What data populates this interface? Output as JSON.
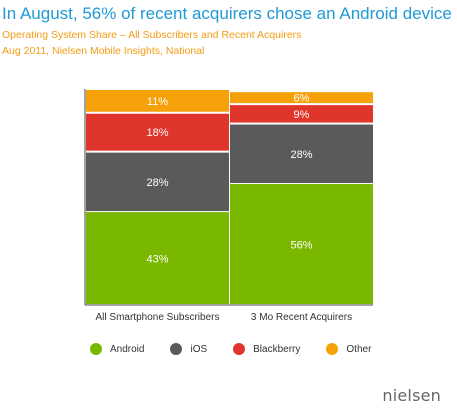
{
  "header": {
    "title": "In August, 56% of recent acquirers chose an Android device",
    "subtitle_line1": "Operating System Share – All Subscribers and Recent Acquirers",
    "subtitle_line2": "Aug 2011, Nielsen Mobile Insights, National"
  },
  "colors": {
    "Android": "#7ab800",
    "iOS": "#5a5a5a",
    "Blackberry": "#e0352b",
    "Other": "#f7a10a",
    "accent": "#1f9ad6"
  },
  "chart_data": {
    "type": "bar",
    "stacked": true,
    "normalized": true,
    "title": "In August, 56% of recent acquirers chose an Android device",
    "subtitle": "Operating System Share – All Subscribers and Recent Acquirers",
    "categories": [
      "All Smartphone Subscribers",
      "3 Mo Recent Acquirers"
    ],
    "series": [
      {
        "name": "Android",
        "values": [
          43,
          56
        ]
      },
      {
        "name": "iOS",
        "values": [
          28,
          28
        ]
      },
      {
        "name": "Blackberry",
        "values": [
          18,
          9
        ]
      },
      {
        "name": "Other",
        "values": [
          11,
          6
        ]
      }
    ],
    "value_labels_suffix": "%",
    "ylim": [
      0,
      100
    ],
    "grid": false,
    "legend_placement": "bottom"
  },
  "legend": [
    "Android",
    "iOS",
    "Blackberry",
    "Other"
  ],
  "logo": {
    "text": "nielsen"
  }
}
